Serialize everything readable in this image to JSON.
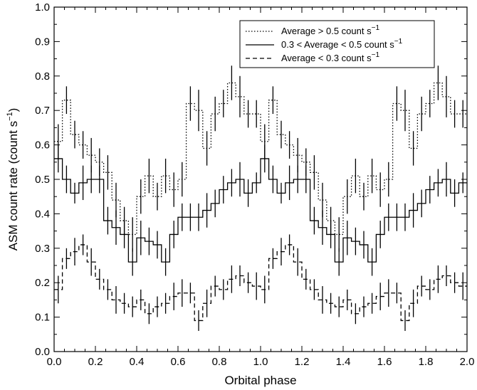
{
  "chart_data": {
    "type": "line",
    "style": "step with error bars",
    "xlabel": "Orbital phase",
    "ylabel": "ASM count rate (count s",
    "ylabel_unit_suffix": ")",
    "ylabel_superscript": "−1",
    "xlim": [
      0.0,
      2.0
    ],
    "ylim": [
      0.0,
      1.0
    ],
    "x_ticks": [
      "0.0",
      "0.2",
      "0.4",
      "0.6",
      "0.8",
      "1.0",
      "1.2",
      "1.4",
      "1.6",
      "1.8",
      "2.0"
    ],
    "y_ticks": [
      "0.0",
      "0.1",
      "0.2",
      "0.3",
      "0.4",
      "0.5",
      "0.6",
      "0.7",
      "0.8",
      "0.9",
      "1.0"
    ],
    "x_tick_values": [
      0.0,
      0.2,
      0.4,
      0.6,
      0.8,
      1.0,
      1.2,
      1.4,
      1.6,
      1.8,
      2.0
    ],
    "y_tick_values": [
      0.0,
      0.1,
      0.2,
      0.3,
      0.4,
      0.5,
      0.6,
      0.7,
      0.8,
      0.9,
      1.0
    ],
    "grid": false,
    "legend_position": "top-right",
    "bin_width": 0.04,
    "phase_bin_centers": [
      0.02,
      0.06,
      0.1,
      0.14,
      0.18,
      0.22,
      0.26,
      0.3,
      0.34,
      0.38,
      0.42,
      0.46,
      0.5,
      0.54,
      0.58,
      0.62,
      0.66,
      0.7,
      0.74,
      0.78,
      0.82,
      0.86,
      0.9,
      0.94,
      0.98
    ],
    "series": [
      {
        "name": "Average > 0.5 count s",
        "name_superscript": "−1",
        "line_style": "dotted",
        "values": [
          0.61,
          0.73,
          0.63,
          0.6,
          0.57,
          0.55,
          0.52,
          0.44,
          0.38,
          0.34,
          0.45,
          0.51,
          0.45,
          0.51,
          0.47,
          0.5,
          0.72,
          0.7,
          0.59,
          0.69,
          0.72,
          0.78,
          0.74,
          0.69,
          0.69
        ],
        "errors": [
          0.05,
          0.04,
          0.04,
          0.04,
          0.05,
          0.04,
          0.05,
          0.05,
          0.04,
          0.05,
          0.05,
          0.05,
          0.04,
          0.05,
          0.05,
          0.05,
          0.05,
          0.06,
          0.05,
          0.05,
          0.04,
          0.05,
          0.06,
          0.04,
          0.04
        ]
      },
      {
        "name": "0.3 < Average < 0.5 count s",
        "name_superscript": "−1",
        "line_style": "solid",
        "values": [
          0.56,
          0.5,
          0.46,
          0.49,
          0.5,
          0.5,
          0.38,
          0.36,
          0.34,
          0.26,
          0.33,
          0.32,
          0.31,
          0.26,
          0.34,
          0.39,
          0.39,
          0.39,
          0.41,
          0.43,
          0.47,
          0.49,
          0.5,
          0.46,
          0.49
        ],
        "errors": [
          0.04,
          0.04,
          0.03,
          0.05,
          0.04,
          0.04,
          0.04,
          0.05,
          0.04,
          0.04,
          0.05,
          0.04,
          0.04,
          0.04,
          0.04,
          0.04,
          0.04,
          0.04,
          0.05,
          0.04,
          0.04,
          0.04,
          0.05,
          0.04,
          0.03
        ]
      },
      {
        "name": "Average < 0.3 count s",
        "name_superscript": "−1",
        "line_style": "dashed",
        "values": [
          0.18,
          0.27,
          0.29,
          0.31,
          0.26,
          0.21,
          0.18,
          0.15,
          0.14,
          0.13,
          0.15,
          0.11,
          0.13,
          0.14,
          0.16,
          0.17,
          0.17,
          0.09,
          0.14,
          0.19,
          0.18,
          0.21,
          0.22,
          0.2,
          0.19
        ],
        "errors": [
          0.04,
          0.03,
          0.04,
          0.03,
          0.04,
          0.03,
          0.03,
          0.04,
          0.03,
          0.03,
          0.03,
          0.03,
          0.03,
          0.03,
          0.04,
          0.04,
          0.03,
          0.03,
          0.04,
          0.03,
          0.03,
          0.04,
          0.03,
          0.03,
          0.04
        ]
      }
    ]
  }
}
